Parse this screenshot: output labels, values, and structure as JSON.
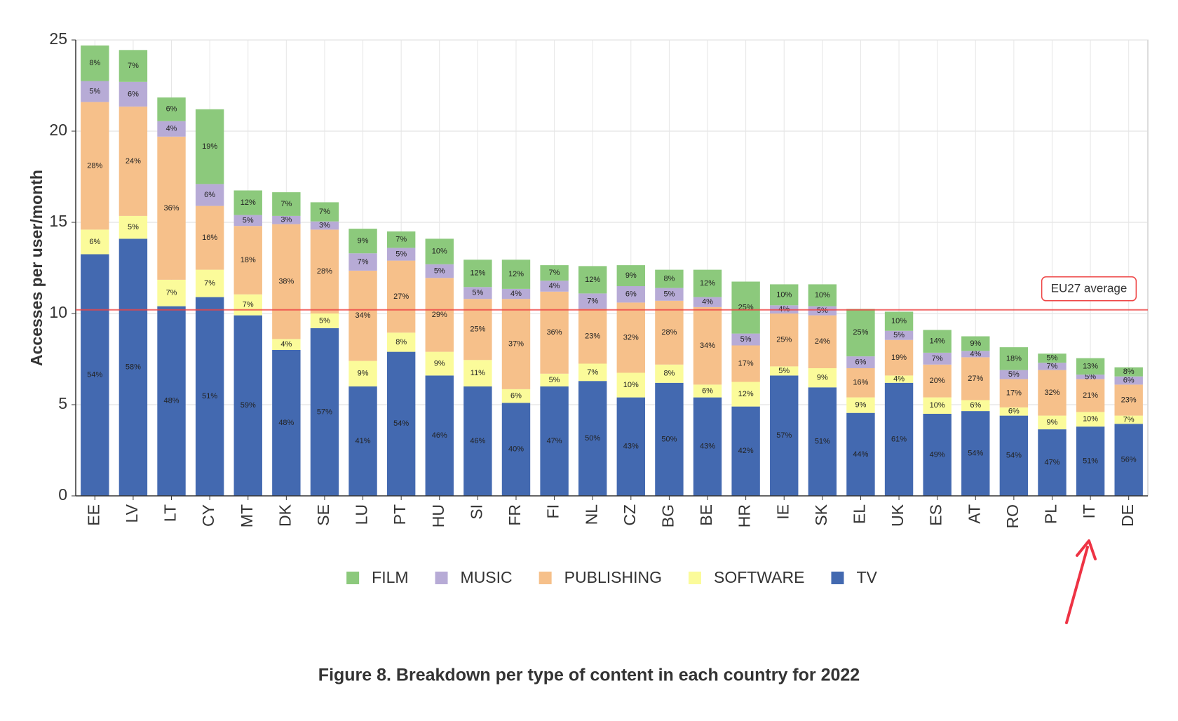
{
  "chart_data": {
    "type": "stacked_bar",
    "caption": "Figure 8. Breakdown per type of content in each country for 2022",
    "y_label": "Accesses per user/month",
    "categories": [
      "EE",
      "LV",
      "LT",
      "CY",
      "MT",
      "DK",
      "SE",
      "LU",
      "PT",
      "HU",
      "SI",
      "FR",
      "FI",
      "NL",
      "CZ",
      "BG",
      "BE",
      "HR",
      "IE",
      "SK",
      "EL",
      "UK",
      "ES",
      "AT",
      "RO",
      "PL",
      "IT",
      "DE"
    ],
    "ylim": [
      0,
      25
    ],
    "yticks": [
      0,
      5,
      10,
      15,
      20,
      25
    ],
    "grid": true,
    "legend": "bottom",
    "reference_line": {
      "value": 10.2,
      "label": "EU27 average",
      "color": "#ee4444"
    },
    "series": [
      {
        "name": "FILM",
        "color": "#8cc97c",
        "values": [
          1.95,
          1.75,
          1.3,
          4.1,
          1.35,
          1.3,
          1.05,
          1.35,
          0.9,
          1.4,
          1.5,
          1.6,
          0.85,
          1.5,
          1.15,
          1.0,
          1.5,
          2.85,
          1.15,
          1.2,
          2.6,
          1.05,
          1.25,
          0.8,
          1.25,
          0.5,
          0.9,
          0.5
        ],
        "labels": [
          "8%",
          "7%",
          "6%",
          "19%",
          "12%",
          "7%",
          "7%",
          "9%",
          "7%",
          "10%",
          "12%",
          "12%",
          "7%",
          "12%",
          "9%",
          "8%",
          "12%",
          "25%",
          "10%",
          "10%",
          "25%",
          "10%",
          "14%",
          "9%",
          "18%",
          "5%",
          "13%",
          "8%"
        ]
      },
      {
        "name": "MUSIC",
        "color": "#b7abd6",
        "values": [
          1.15,
          1.35,
          0.85,
          1.2,
          0.6,
          0.45,
          0.45,
          0.95,
          0.7,
          0.75,
          0.65,
          0.55,
          0.6,
          0.85,
          0.9,
          0.7,
          0.55,
          0.65,
          0.45,
          0.5,
          0.65,
          0.5,
          0.65,
          0.35,
          0.5,
          0.4,
          0.25,
          0.45
        ],
        "labels": [
          "5%",
          "6%",
          "4%",
          "6%",
          "5%",
          "3%",
          "3%",
          "7%",
          "5%",
          "5%",
          "5%",
          "4%",
          "4%",
          "7%",
          "6%",
          "5%",
          "4%",
          "5%",
          "4%",
          "5%",
          "6%",
          "5%",
          "7%",
          "4%",
          "5%",
          "7%",
          "5%",
          "6%"
        ]
      },
      {
        "name": "PUBLISHING",
        "color": "#f6c08a",
        "values": [
          7.0,
          6.0,
          7.85,
          3.5,
          3.75,
          6.3,
          4.6,
          4.95,
          3.95,
          4.05,
          3.35,
          4.95,
          4.5,
          3.0,
          3.85,
          3.5,
          4.25,
          2.0,
          2.9,
          2.9,
          1.6,
          1.95,
          1.8,
          2.35,
          1.55,
          2.5,
          1.8,
          1.7
        ],
        "labels": [
          "28%",
          "24%",
          "36%",
          "16%",
          "18%",
          "38%",
          "28%",
          "34%",
          "27%",
          "29%",
          "25%",
          "37%",
          "36%",
          "23%",
          "32%",
          "28%",
          "34%",
          "17%",
          "25%",
          "24%",
          "16%",
          "19%",
          "20%",
          "27%",
          "17%",
          "32%",
          "21%",
          "23%"
        ]
      },
      {
        "name": "SOFTWARE",
        "color": "#fbfb9a",
        "values": [
          1.35,
          1.25,
          1.45,
          1.5,
          1.15,
          0.6,
          0.8,
          1.4,
          1.05,
          1.3,
          1.45,
          0.75,
          0.7,
          0.95,
          1.35,
          1.0,
          0.7,
          1.35,
          0.5,
          1.05,
          0.85,
          0.4,
          0.9,
          0.6,
          0.45,
          0.75,
          0.8,
          0.45
        ],
        "labels": [
          "6%",
          "5%",
          "7%",
          "7%",
          "7%",
          "4%",
          "5%",
          "9%",
          "8%",
          "9%",
          "11%",
          "6%",
          "5%",
          "7%",
          "10%",
          "8%",
          "6%",
          "12%",
          "5%",
          "9%",
          "9%",
          "4%",
          "10%",
          "6%",
          "6%",
          "9%",
          "10%",
          "7%"
        ]
      },
      {
        "name": "TV",
        "color": "#4369b0",
        "values": [
          13.25,
          14.1,
          10.4,
          10.9,
          9.9,
          8.0,
          9.2,
          6.0,
          7.9,
          6.6,
          6.0,
          5.1,
          6.0,
          6.3,
          5.4,
          6.2,
          5.4,
          4.9,
          6.6,
          5.95,
          4.55,
          6.2,
          4.5,
          4.65,
          4.4,
          3.65,
          3.8,
          3.95
        ],
        "labels": [
          "54%",
          "58%",
          "48%",
          "51%",
          "59%",
          "48%",
          "57%",
          "41%",
          "54%",
          "46%",
          "46%",
          "40%",
          "47%",
          "50%",
          "43%",
          "50%",
          "43%",
          "42%",
          "57%",
          "51%",
          "44%",
          "61%",
          "49%",
          "54%",
          "54%",
          "47%",
          "51%",
          "56%"
        ]
      }
    ]
  }
}
